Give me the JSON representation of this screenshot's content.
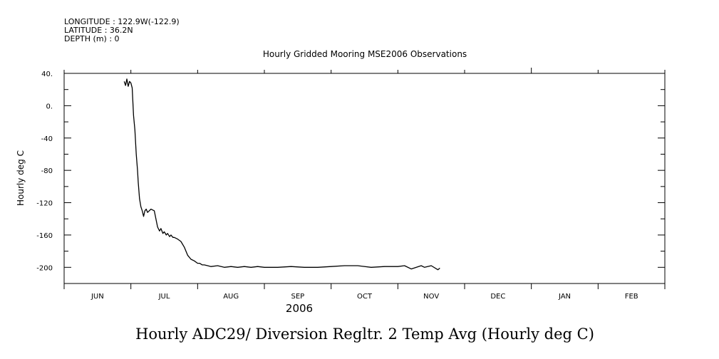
{
  "header": {
    "longitude": "LONGITUDE : 122.9W(-122.9)",
    "latitude": "LATITUDE : 36.2N",
    "depth": "DEPTH (m) : 0"
  },
  "chart_data": {
    "type": "line",
    "title": "Hourly Gridded Mooring MSE2006 Observations",
    "ylabel": "Hourly deg C",
    "xlabel": "2006",
    "caption": "Hourly ADC29/ Diversion Regltr. 2 Temp Avg (Hourly deg C)",
    "ylim": [
      -220,
      40
    ],
    "yticks": [
      40,
      0,
      -40,
      -80,
      -120,
      -160,
      -200
    ],
    "ytick_labels": [
      "40.",
      "0.",
      "-40",
      "-80",
      "-120",
      "-160",
      "-200"
    ],
    "xlim": [
      0,
      9
    ],
    "month_labels": [
      "JUN",
      "JUL",
      "AUG",
      "SEP",
      "OCT",
      "NOV",
      "DEC",
      "JAN",
      "FEB"
    ],
    "series": [
      {
        "name": "Hourly deg C",
        "color": "#000000",
        "x": [
          0.9,
          0.92,
          0.94,
          0.96,
          0.98,
          1.0,
          1.02,
          1.04,
          1.06,
          1.08,
          1.1,
          1.11,
          1.12,
          1.13,
          1.15,
          1.17,
          1.19,
          1.21,
          1.23,
          1.25,
          1.3,
          1.35,
          1.4,
          1.43,
          1.45,
          1.48,
          1.5,
          1.53,
          1.55,
          1.58,
          1.6,
          1.63,
          1.65,
          1.7,
          1.75,
          1.8,
          1.85,
          1.9,
          1.95,
          2.0,
          2.03,
          2.07,
          2.1,
          2.15,
          2.2,
          2.3,
          2.4,
          2.5,
          2.6,
          2.7,
          2.8,
          2.9,
          3.0,
          3.2,
          3.4,
          3.6,
          3.8,
          4.0,
          4.2,
          4.4,
          4.6,
          4.8,
          5.0,
          5.1,
          5.2,
          5.35,
          5.4,
          5.5,
          5.6,
          5.63
        ],
        "y": [
          30,
          25,
          33,
          24,
          30,
          28,
          22,
          -12,
          -30,
          -60,
          -80,
          -95,
          -105,
          -115,
          -125,
          -130,
          -137,
          -130,
          -128,
          -132,
          -128,
          -130,
          -150,
          -155,
          -152,
          -158,
          -156,
          -160,
          -158,
          -162,
          -160,
          -163,
          -163,
          -165,
          -168,
          -175,
          -185,
          -190,
          -192,
          -195,
          -195,
          -197,
          -197,
          -198,
          -199,
          -198,
          -200,
          -199,
          -200,
          -199,
          -200,
          -199,
          -200,
          -200,
          -199,
          -200,
          -200,
          -199,
          -198,
          -198,
          -200,
          -199,
          -199,
          -198,
          -202,
          -198,
          -200,
          -198,
          -203,
          -201
        ]
      }
    ]
  }
}
